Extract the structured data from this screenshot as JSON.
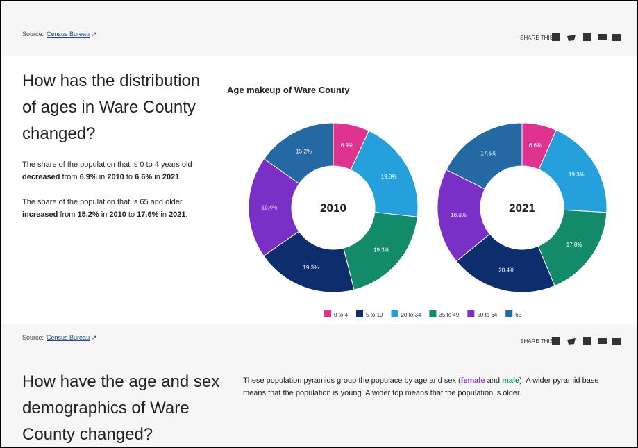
{
  "top_bar": {
    "source_label": "Source:",
    "source_link": "Census Bureau",
    "share_label": "SHARE THIS"
  },
  "section1": {
    "heading": "How has the distribution of ages in Ware County changed?",
    "paragraphs": [
      [
        {
          "text": "The share of the population that is 0 to 4 years old "
        },
        {
          "text": "decreased",
          "bold": true
        },
        {
          "text": " from "
        },
        {
          "text": "6.9%",
          "bold": true
        },
        {
          "text": " in "
        },
        {
          "text": "2010",
          "bold": true
        },
        {
          "text": " to "
        },
        {
          "text": "6.6%",
          "bold": true
        },
        {
          "text": " in "
        },
        {
          "text": "2021",
          "bold": true
        },
        {
          "text": "."
        }
      ],
      [
        {
          "text": "The share of the population that is 65 and older "
        },
        {
          "text": "increased",
          "bold": true
        },
        {
          "text": " from "
        },
        {
          "text": "15.2%",
          "bold": true
        },
        {
          "text": " in "
        },
        {
          "text": "2010",
          "bold": true
        },
        {
          "text": " to "
        },
        {
          "text": "17.6%",
          "bold": true
        },
        {
          "text": " in "
        },
        {
          "text": "2021",
          "bold": true
        },
        {
          "text": "."
        }
      ]
    ],
    "chart_title": "Age makeup of Ware County"
  },
  "chart_data": [
    {
      "type": "donut",
      "center_label": "2010",
      "categories": [
        "0 to 4",
        "20 to 34",
        "35 to 49",
        "5 to 19",
        "50 to 64",
        "65+"
      ],
      "values": [
        6.9,
        19.8,
        19.3,
        19.3,
        19.4,
        15.2
      ],
      "value_labels": [
        "6.9%",
        "19.8%",
        "19.3%",
        "19.3%",
        "19.4%",
        "15.2%"
      ],
      "colors": [
        "#e0338f",
        "#26a0dd",
        "#138a6a",
        "#0d2d6c",
        "#7a2fc7",
        "#2469a4"
      ]
    },
    {
      "type": "donut",
      "center_label": "2021",
      "categories": [
        "0 to 4",
        "20 to 34",
        "35 to 49",
        "5 to 19",
        "50 to 64",
        "65+"
      ],
      "values": [
        6.6,
        19.3,
        17.8,
        20.4,
        18.3,
        17.6
      ],
      "value_labels": [
        "6.6%",
        "19.3%",
        "17.8%",
        "20.4%",
        "18.3%",
        "17.6%"
      ],
      "colors": [
        "#e0338f",
        "#26a0dd",
        "#138a6a",
        "#0d2d6c",
        "#7a2fc7",
        "#2469a4"
      ]
    }
  ],
  "legend": [
    {
      "label": "0 to 4",
      "color": "#e0338f"
    },
    {
      "label": "5 to 19",
      "color": "#0d2d6c"
    },
    {
      "label": "20 to 34",
      "color": "#26a0dd"
    },
    {
      "label": "35 to 49",
      "color": "#138a6a"
    },
    {
      "label": "50 to 64",
      "color": "#7a2fc7"
    },
    {
      "label": "65+",
      "color": "#2469a4"
    }
  ],
  "mid_bar": {
    "source_label": "Source:",
    "source_link": "Census Bureau",
    "share_label": "SHARE THIS"
  },
  "section2": {
    "heading": "How have the age and sex demographics of Ware County changed?",
    "paragraph": [
      {
        "text": "These population pyramids group the populace by age and sex ("
      },
      {
        "text": "female",
        "bold": true,
        "color": "#7a2fc7"
      },
      {
        "text": " and "
      },
      {
        "text": "male",
        "bold": true,
        "color": "#138a6a"
      },
      {
        "text": "). A wider pyramid base means that the population is young. A wider top means that the population is older."
      }
    ]
  }
}
